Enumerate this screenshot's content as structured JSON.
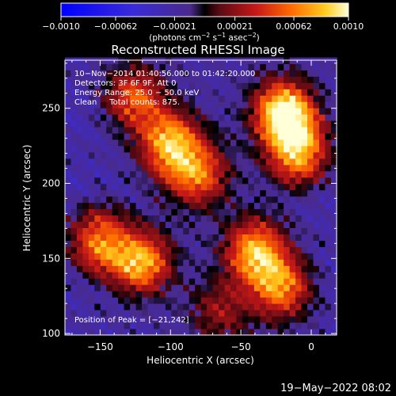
{
  "chart_data": {
    "type": "heatmap",
    "title": "Reconstructed RHESSI Image",
    "xlabel": "Heliocentric X (arcsec)",
    "ylabel": "Heliocentric Y (arcsec)",
    "xlim": [
      -175,
      18
    ],
    "ylim": [
      99,
      282
    ],
    "x_ticks": [
      {
        "value": -150,
        "label": "−150"
      },
      {
        "value": -100,
        "label": "−100"
      },
      {
        "value": -50,
        "label": "−50"
      },
      {
        "value": 0,
        "label": "0"
      }
    ],
    "y_ticks": [
      {
        "value": 100,
        "label": "100"
      },
      {
        "value": 150,
        "label": "150"
      },
      {
        "value": 200,
        "label": "200"
      },
      {
        "value": 250,
        "label": "250"
      }
    ],
    "colorbar": {
      "range": [
        -0.001,
        0.001
      ],
      "ticks": [
        {
          "value": -0.001,
          "label": "−0.0010"
        },
        {
          "value": -0.00062,
          "label": "−0.00062"
        },
        {
          "value": -0.00021,
          "label": "−0.00021"
        },
        {
          "value": 0.00021,
          "label": "0.00021"
        },
        {
          "value": 0.00062,
          "label": "0.00062"
        },
        {
          "value": 0.001,
          "label": "0.0010"
        }
      ],
      "unit_parts": [
        "(photons cm",
        "−2",
        " s",
        "−1",
        " asec",
        "−2",
        ")"
      ]
    },
    "annotations": [
      "10−Nov−2014 01:40:56.000 to 01:42:20.000",
      "Detectors: 3F 6F 9F, Att 0",
      "Energy Range: 25.0 − 50.0 keV",
      "Clean     Total counts: 875."
    ],
    "peak_label": "Position of Peak = [−21,242]",
    "sources": [
      {
        "x": -125,
        "y": 258,
        "value": 0.0006
      },
      {
        "x": -100,
        "y": 226,
        "value": 0.0009
      },
      {
        "x": -80,
        "y": 206,
        "value": 0.0007
      },
      {
        "x": -20,
        "y": 248,
        "value": 0.001
      },
      {
        "x": -10,
        "y": 222,
        "value": 0.0009
      },
      {
        "x": -150,
        "y": 162,
        "value": 0.0007
      },
      {
        "x": -120,
        "y": 148,
        "value": 0.0008
      },
      {
        "x": -40,
        "y": 155,
        "value": 0.0009
      },
      {
        "x": -22,
        "y": 130,
        "value": 0.0007
      },
      {
        "x": -65,
        "y": 115,
        "value": 0.0004
      }
    ]
  },
  "footer": {
    "timestamp": "19−May−2022 08:02"
  },
  "colors": {
    "background": "#000000",
    "text": "#ffffff",
    "axis": "#ffffff"
  }
}
